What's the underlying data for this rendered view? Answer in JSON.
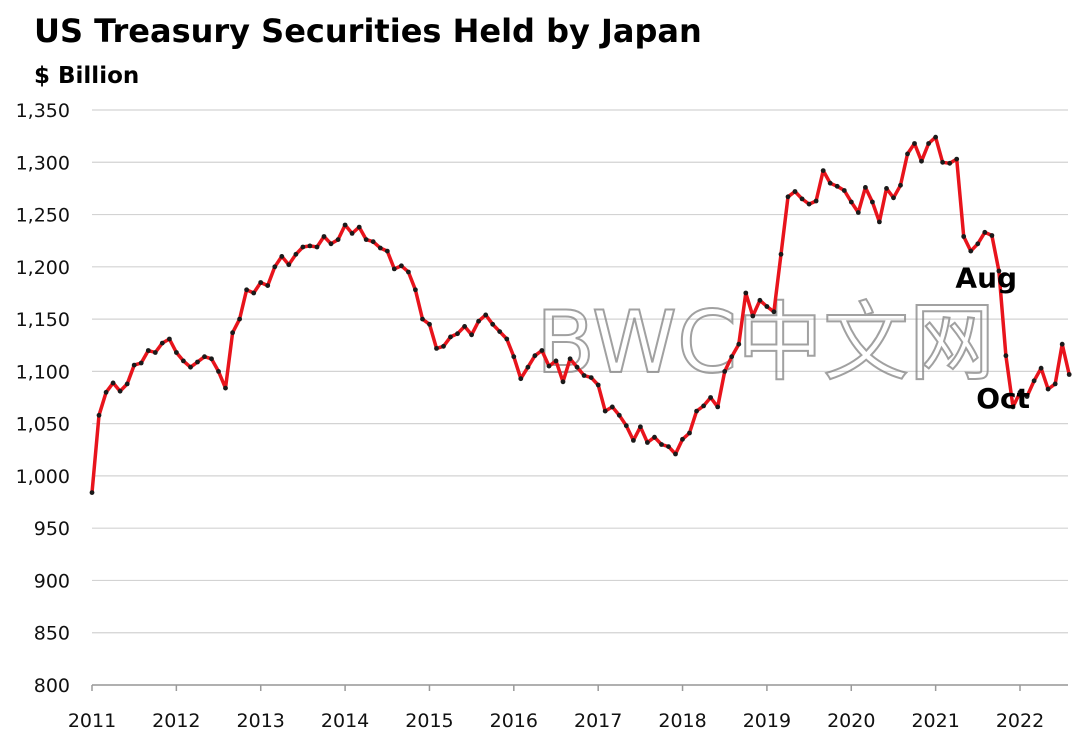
{
  "chart_data": {
    "type": "line",
    "title": "US Treasury Securities Held by Japan",
    "ylabel": "$ Billion",
    "xlabel": "",
    "ylim": [
      800,
      1350
    ],
    "yticks": [
      "800",
      "850",
      "900",
      "950",
      "1,000",
      "1,050",
      "1,100",
      "1,150",
      "1,200",
      "1,250",
      "1,300",
      "1,350"
    ],
    "ytick_values": [
      800,
      850,
      900,
      950,
      1000,
      1050,
      1100,
      1150,
      1200,
      1250,
      1300,
      1350
    ],
    "xlim": [
      2011,
      2022.6
    ],
    "xticks": [
      "2011",
      "2012",
      "2013",
      "2014",
      "2015",
      "2016",
      "2017",
      "2018",
      "2019",
      "2020",
      "2021",
      "2022"
    ],
    "xtick_values": [
      2011,
      2012,
      2013,
      2014,
      2015,
      2016,
      2017,
      2018,
      2019,
      2020,
      2021,
      2022
    ],
    "grid": true,
    "legend": "none",
    "line_color": "#e8141c",
    "marker_color": "#1a1a1a",
    "annotations": [
      {
        "text": "Aug",
        "x": 2021.6,
        "y": 1180
      },
      {
        "text": "Oct",
        "x": 2021.8,
        "y": 1065
      }
    ],
    "watermark": "BWC中文网",
    "x": [
      2011.0,
      2011.083,
      2011.167,
      2011.25,
      2011.333,
      2011.417,
      2011.5,
      2011.583,
      2011.667,
      2011.75,
      2011.833,
      2011.917,
      2012.0,
      2012.083,
      2012.167,
      2012.25,
      2012.333,
      2012.417,
      2012.5,
      2012.583,
      2012.667,
      2012.75,
      2012.833,
      2012.917,
      2013.0,
      2013.083,
      2013.167,
      2013.25,
      2013.333,
      2013.417,
      2013.5,
      2013.583,
      2013.667,
      2013.75,
      2013.833,
      2013.917,
      2014.0,
      2014.083,
      2014.167,
      2014.25,
      2014.333,
      2014.417,
      2014.5,
      2014.583,
      2014.667,
      2014.75,
      2014.833,
      2014.917,
      2015.0,
      2015.083,
      2015.167,
      2015.25,
      2015.333,
      2015.417,
      2015.5,
      2015.583,
      2015.667,
      2015.75,
      2015.833,
      2015.917,
      2016.0,
      2016.083,
      2016.167,
      2016.25,
      2016.333,
      2016.417,
      2016.5,
      2016.583,
      2016.667,
      2016.75,
      2016.833,
      2016.917,
      2017.0,
      2017.083,
      2017.167,
      2017.25,
      2017.333,
      2017.417,
      2017.5,
      2017.583,
      2017.667,
      2017.75,
      2017.833,
      2017.917,
      2018.0,
      2018.083,
      2018.167,
      2018.25,
      2018.333,
      2018.417,
      2018.5,
      2018.583,
      2018.667,
      2018.75,
      2018.833,
      2018.917,
      2019.0,
      2019.083,
      2019.167,
      2019.25,
      2019.333,
      2019.417,
      2019.5,
      2019.583,
      2019.667,
      2019.75,
      2019.833,
      2019.917,
      2020.0,
      2020.083,
      2020.167,
      2020.25,
      2020.333,
      2020.417,
      2020.5,
      2020.583,
      2020.667,
      2020.75,
      2020.833,
      2020.917,
      2021.0,
      2021.083,
      2021.167,
      2021.25,
      2021.333,
      2021.417,
      2021.5,
      2021.583,
      2021.667,
      2021.75,
      2021.833,
      2021.917,
      2022.0,
      2022.083,
      2022.167,
      2022.25,
      2022.333,
      2022.417,
      2022.5,
      2022.583
    ],
    "series": [
      {
        "values": [
          984,
          1058,
          1080,
          1089,
          1081,
          1088,
          1106,
          1108,
          1120,
          1118,
          1127,
          1131,
          1118,
          1110,
          1104,
          1109,
          1114,
          1112,
          1100,
          1084,
          1137,
          1150,
          1178,
          1175,
          1185,
          1182,
          1200,
          1210,
          1202,
          1212,
          1219,
          1220,
          1219,
          1229,
          1222,
          1226,
          1240,
          1232,
          1238,
          1226,
          1224,
          1218,
          1215,
          1198,
          1201,
          1195,
          1178,
          1150,
          1145,
          1122,
          1124,
          1133,
          1136,
          1143,
          1135,
          1148,
          1154,
          1145,
          1138,
          1131,
          1114,
          1093,
          1104,
          1115,
          1120,
          1105,
          1110,
          1090,
          1112,
          1104,
          1096,
          1094,
          1087,
          1062,
          1066,
          1058,
          1048,
          1034,
          1047,
          1032,
          1037,
          1030,
          1028,
          1021,
          1035,
          1041,
          1062,
          1067,
          1075,
          1066,
          1100,
          1114,
          1126,
          1175,
          1153,
          1168,
          1162,
          1157,
          1212,
          1267,
          1272,
          1265,
          1260,
          1263,
          1292,
          1280,
          1277,
          1273,
          1262,
          1252,
          1276,
          1262,
          1243,
          1275,
          1266,
          1278,
          1308,
          1318,
          1301,
          1318,
          1324,
          1300,
          1299,
          1303,
          1229,
          1215,
          1222,
          1233,
          1230,
          1196,
          1115,
          1066,
          1080,
          1076,
          1091,
          1103,
          1083,
          1088,
          1126,
          1097
        ]
      }
    ]
  }
}
